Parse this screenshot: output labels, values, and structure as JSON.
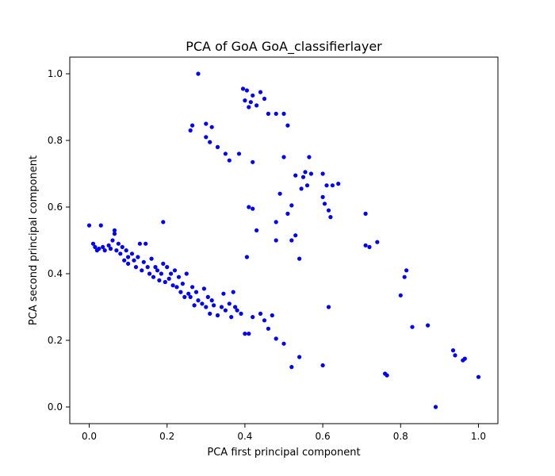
{
  "chart_data": {
    "type": "scatter",
    "title": "PCA of GoA GoA_classifierlayer",
    "xlabel": "PCA first principal component",
    "ylabel": "PCA second principal component",
    "xlim": [
      -0.05,
      1.05
    ],
    "ylim": [
      -0.05,
      1.05
    ],
    "xticks": [
      0.0,
      0.2,
      0.4,
      0.6,
      0.8,
      1.0
    ],
    "yticks": [
      0.0,
      0.2,
      0.4,
      0.6,
      0.8,
      1.0
    ],
    "tick_labels_x": [
      "0.0",
      "0.2",
      "0.4",
      "0.6",
      "0.8",
      "1.0"
    ],
    "tick_labels_y": [
      "0.0",
      "0.2",
      "0.4",
      "0.6",
      "0.8",
      "1.0"
    ],
    "grid": false,
    "marker_color": "#0000ff",
    "series": [
      {
        "points": [
          [
            0.0,
            0.545
          ],
          [
            0.01,
            0.49
          ],
          [
            0.015,
            0.48
          ],
          [
            0.02,
            0.47
          ],
          [
            0.025,
            0.475
          ],
          [
            0.03,
            0.545
          ],
          [
            0.035,
            0.48
          ],
          [
            0.04,
            0.47
          ],
          [
            0.05,
            0.485
          ],
          [
            0.055,
            0.475
          ],
          [
            0.06,
            0.5
          ],
          [
            0.065,
            0.52
          ],
          [
            0.065,
            0.53
          ],
          [
            0.07,
            0.47
          ],
          [
            0.075,
            0.49
          ],
          [
            0.08,
            0.46
          ],
          [
            0.085,
            0.48
          ],
          [
            0.09,
            0.44
          ],
          [
            0.095,
            0.47
          ],
          [
            0.1,
            0.45
          ],
          [
            0.1,
            0.43
          ],
          [
            0.11,
            0.46
          ],
          [
            0.115,
            0.44
          ],
          [
            0.12,
            0.42
          ],
          [
            0.125,
            0.45
          ],
          [
            0.13,
            0.49
          ],
          [
            0.135,
            0.41
          ],
          [
            0.14,
            0.435
          ],
          [
            0.145,
            0.49
          ],
          [
            0.15,
            0.42
          ],
          [
            0.155,
            0.4
          ],
          [
            0.16,
            0.445
          ],
          [
            0.165,
            0.39
          ],
          [
            0.17,
            0.42
          ],
          [
            0.175,
            0.41
          ],
          [
            0.18,
            0.38
          ],
          [
            0.185,
            0.4
          ],
          [
            0.19,
            0.555
          ],
          [
            0.19,
            0.43
          ],
          [
            0.195,
            0.375
          ],
          [
            0.2,
            0.42
          ],
          [
            0.205,
            0.385
          ],
          [
            0.21,
            0.4
          ],
          [
            0.215,
            0.365
          ],
          [
            0.22,
            0.41
          ],
          [
            0.225,
            0.36
          ],
          [
            0.23,
            0.39
          ],
          [
            0.235,
            0.345
          ],
          [
            0.24,
            0.37
          ],
          [
            0.245,
            0.33
          ],
          [
            0.25,
            0.4
          ],
          [
            0.255,
            0.34
          ],
          [
            0.26,
            0.33
          ],
          [
            0.265,
            0.36
          ],
          [
            0.27,
            0.305
          ],
          [
            0.275,
            0.345
          ],
          [
            0.28,
            0.32
          ],
          [
            0.29,
            0.31
          ],
          [
            0.295,
            0.355
          ],
          [
            0.3,
            0.3
          ],
          [
            0.305,
            0.33
          ],
          [
            0.31,
            0.28
          ],
          [
            0.315,
            0.32
          ],
          [
            0.32,
            0.305
          ],
          [
            0.33,
            0.275
          ],
          [
            0.34,
            0.3
          ],
          [
            0.345,
            0.34
          ],
          [
            0.35,
            0.29
          ],
          [
            0.36,
            0.31
          ],
          [
            0.365,
            0.27
          ],
          [
            0.37,
            0.345
          ],
          [
            0.375,
            0.3
          ],
          [
            0.38,
            0.29
          ],
          [
            0.39,
            0.28
          ],
          [
            0.4,
            0.22
          ],
          [
            0.41,
            0.22
          ],
          [
            0.42,
            0.27
          ],
          [
            0.44,
            0.28
          ],
          [
            0.45,
            0.26
          ],
          [
            0.46,
            0.235
          ],
          [
            0.47,
            0.275
          ],
          [
            0.48,
            0.205
          ],
          [
            0.5,
            0.19
          ],
          [
            0.52,
            0.12
          ],
          [
            0.54,
            0.15
          ],
          [
            0.6,
            0.125
          ],
          [
            0.28,
            1.0
          ],
          [
            0.26,
            0.83
          ],
          [
            0.265,
            0.845
          ],
          [
            0.3,
            0.81
          ],
          [
            0.3,
            0.85
          ],
          [
            0.31,
            0.795
          ],
          [
            0.315,
            0.84
          ],
          [
            0.33,
            0.78
          ],
          [
            0.35,
            0.76
          ],
          [
            0.36,
            0.74
          ],
          [
            0.385,
            0.76
          ],
          [
            0.395,
            0.955
          ],
          [
            0.4,
            0.92
          ],
          [
            0.405,
            0.95
          ],
          [
            0.41,
            0.9
          ],
          [
            0.415,
            0.915
          ],
          [
            0.42,
            0.935
          ],
          [
            0.43,
            0.905
          ],
          [
            0.44,
            0.945
          ],
          [
            0.45,
            0.925
          ],
          [
            0.46,
            0.88
          ],
          [
            0.48,
            0.88
          ],
          [
            0.5,
            0.88
          ],
          [
            0.51,
            0.845
          ],
          [
            0.42,
            0.735
          ],
          [
            0.41,
            0.6
          ],
          [
            0.42,
            0.595
          ],
          [
            0.43,
            0.53
          ],
          [
            0.405,
            0.45
          ],
          [
            0.48,
            0.555
          ],
          [
            0.49,
            0.64
          ],
          [
            0.5,
            0.75
          ],
          [
            0.51,
            0.58
          ],
          [
            0.52,
            0.605
          ],
          [
            0.52,
            0.5
          ],
          [
            0.53,
            0.515
          ],
          [
            0.53,
            0.695
          ],
          [
            0.54,
            0.445
          ],
          [
            0.545,
            0.655
          ],
          [
            0.55,
            0.69
          ],
          [
            0.555,
            0.705
          ],
          [
            0.56,
            0.665
          ],
          [
            0.565,
            0.75
          ],
          [
            0.57,
            0.7
          ],
          [
            0.6,
            0.7
          ],
          [
            0.6,
            0.63
          ],
          [
            0.605,
            0.61
          ],
          [
            0.61,
            0.665
          ],
          [
            0.615,
            0.59
          ],
          [
            0.62,
            0.57
          ],
          [
            0.625,
            0.665
          ],
          [
            0.64,
            0.67
          ],
          [
            0.615,
            0.3
          ],
          [
            0.48,
            0.5
          ],
          [
            0.71,
            0.58
          ],
          [
            0.71,
            0.485
          ],
          [
            0.72,
            0.48
          ],
          [
            0.74,
            0.495
          ],
          [
            0.76,
            0.1
          ],
          [
            0.765,
            0.095
          ],
          [
            0.8,
            0.335
          ],
          [
            0.81,
            0.39
          ],
          [
            0.815,
            0.41
          ],
          [
            0.83,
            0.24
          ],
          [
            0.87,
            0.245
          ],
          [
            0.89,
            0.0
          ],
          [
            0.935,
            0.17
          ],
          [
            0.94,
            0.155
          ],
          [
            0.96,
            0.14
          ],
          [
            0.965,
            0.145
          ],
          [
            1.0,
            0.09
          ]
        ]
      }
    ]
  }
}
